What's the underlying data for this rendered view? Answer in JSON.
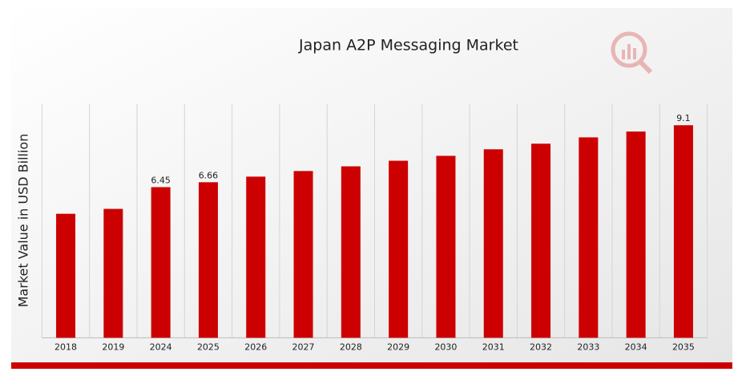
{
  "chart_data": {
    "type": "bar",
    "title": "Japan A2P Messaging Market",
    "y_label": "Market Value in USD Billion",
    "categories": [
      "2018",
      "2019",
      "2024",
      "2025",
      "2026",
      "2027",
      "2028",
      "2029",
      "2030",
      "2031",
      "2032",
      "2033",
      "2034",
      "2035"
    ],
    "values": [
      5.31,
      5.52,
      6.45,
      6.66,
      6.9,
      7.14,
      7.34,
      7.58,
      7.79,
      8.07,
      8.31,
      8.58,
      8.83,
      9.1
    ],
    "value_labels": [
      null,
      null,
      "6.45",
      "6.66",
      null,
      null,
      null,
      null,
      null,
      null,
      null,
      null,
      null,
      "9.1"
    ],
    "color": "#cc0000",
    "ylim": [
      0,
      10
    ],
    "grid": true
  }
}
